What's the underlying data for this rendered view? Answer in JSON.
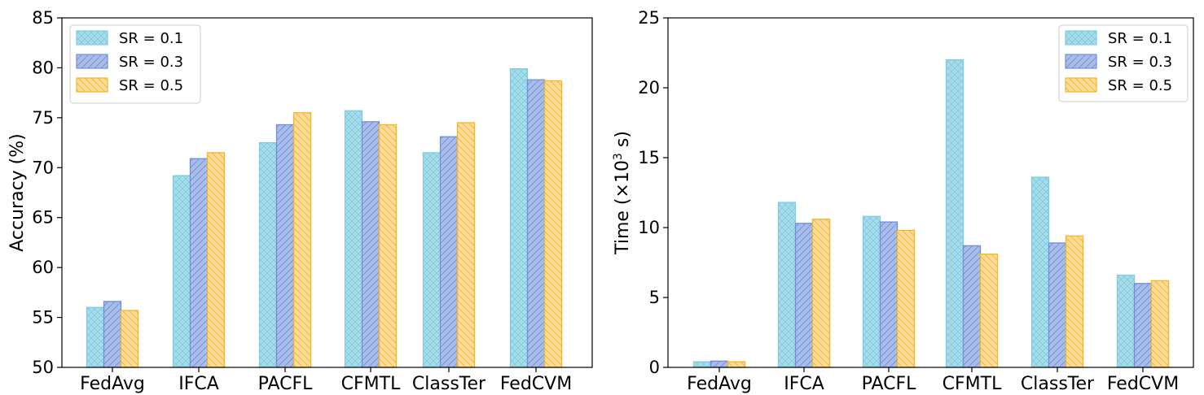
{
  "chart_data": [
    {
      "type": "bar",
      "title": "",
      "xlabel": "",
      "ylabel": "Accuracy (%)",
      "ylim": [
        50,
        85
      ],
      "yticks": [
        50,
        55,
        60,
        65,
        70,
        75,
        80,
        85
      ],
      "categories": [
        "FedAvg",
        "IFCA",
        "PACFL",
        "CFMTL",
        "ClassTer",
        "FedCVM"
      ],
      "series": [
        {
          "name": "SR = 0.1",
          "values": [
            56.0,
            69.2,
            72.5,
            75.7,
            71.5,
            79.9
          ]
        },
        {
          "name": "SR = 0.3",
          "values": [
            56.6,
            70.9,
            74.3,
            74.6,
            73.1,
            78.8
          ]
        },
        {
          "name": "SR = 0.5",
          "values": [
            55.7,
            71.5,
            75.5,
            74.3,
            74.5,
            78.7
          ]
        }
      ],
      "legend_position": "top-left",
      "grid": false
    },
    {
      "type": "bar",
      "title": "",
      "xlabel": "",
      "ylabel": "Time (×10",
      "ylabel_sup": "3",
      "ylabel_end": " s)",
      "ylim": [
        0,
        25
      ],
      "yticks": [
        0,
        5,
        10,
        15,
        20,
        25
      ],
      "categories": [
        "FedAvg",
        "IFCA",
        "PACFL",
        "CFMTL",
        "ClassTer",
        "FedCVM"
      ],
      "series": [
        {
          "name": "SR = 0.1",
          "values": [
            0.4,
            11.8,
            10.8,
            22.0,
            13.6,
            6.6
          ]
        },
        {
          "name": "SR = 0.3",
          "values": [
            0.45,
            10.3,
            10.4,
            8.7,
            8.9,
            6.0
          ]
        },
        {
          "name": "SR = 0.5",
          "values": [
            0.4,
            10.6,
            9.8,
            8.1,
            9.4,
            6.2
          ]
        }
      ],
      "legend_position": "top-right",
      "grid": false
    }
  ],
  "colors": {
    "series_fill": [
      "#a8dcea",
      "#a9bde8",
      "#fcdc9a"
    ],
    "series_edge": [
      "#7fcbe0",
      "#6f8fda",
      "#f5b526"
    ],
    "hatch": [
      "#7fcbe0",
      "#6f8fda",
      "#f5b526"
    ]
  }
}
